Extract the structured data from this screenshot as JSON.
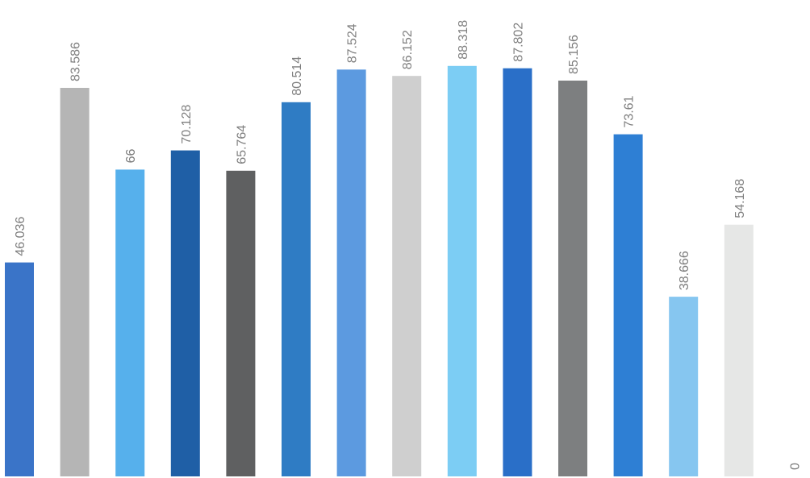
{
  "chart_data": {
    "type": "bar",
    "values": [
      46.036,
      83.586,
      66,
      70.128,
      65.764,
      80.514,
      87.524,
      86.152,
      88.318,
      87.802,
      85.156,
      73.61,
      38.666,
      54.168,
      0
    ],
    "labels": [
      "46.036",
      "83.586",
      "66",
      "70.128",
      "65.764",
      "80.514",
      "87.524",
      "86.152",
      "88.318",
      "87.802",
      "85.156",
      "73.61",
      "38.666",
      "54.168",
      "0"
    ],
    "colors": [
      "#3a74c8",
      "#b5b5b5",
      "#56b0ec",
      "#1f5fa6",
      "#5f6061",
      "#2f7cc4",
      "#5c9ae0",
      "#cfcfcf",
      "#7ccdf4",
      "#2a6fc8",
      "#7d7f80",
      "#2e7fd4",
      "#86c6f0",
      "#e6e7e6",
      "#ffffff"
    ],
    "label_color": "#7f7f7f",
    "ylim": [
      0,
      100
    ],
    "grid": false,
    "legend": "none"
  }
}
